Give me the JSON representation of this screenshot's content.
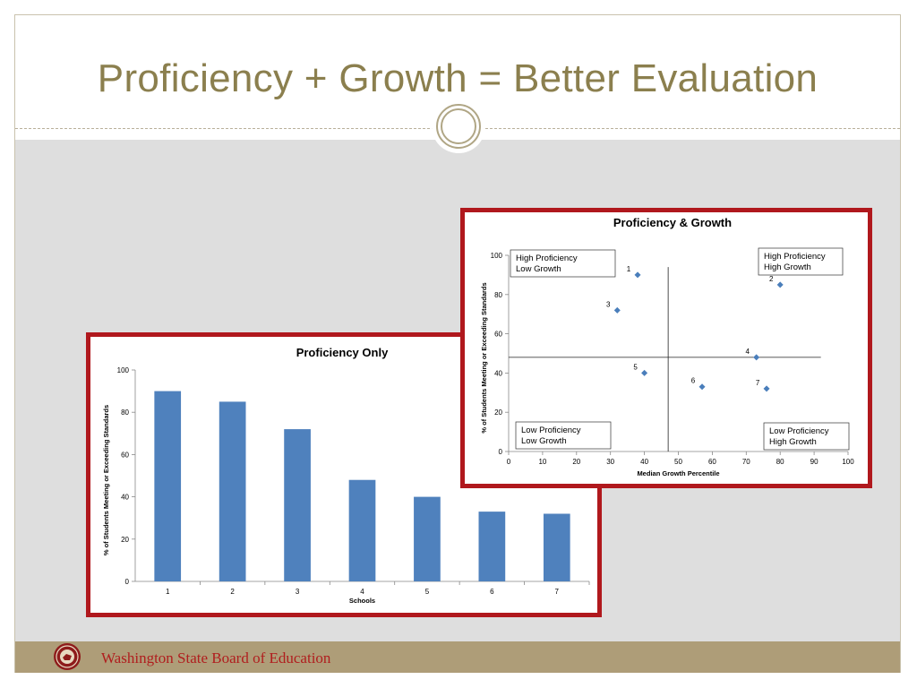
{
  "slide": {
    "title": "Proficiency + Growth = Better Evaluation",
    "footer": "Washington State Board of Education",
    "colors": {
      "title": "#8b7f4e",
      "chart_border": "#b0181d",
      "bar": "#4f81bd",
      "marker": "#4a7ebb",
      "footer_bg": "#ae9d78",
      "footer_text": "#b01e1e"
    }
  },
  "chart_data": [
    {
      "type": "scatter",
      "title": "Proficiency & Growth",
      "xlabel": "Median Growth Percentile",
      "ylabel": "% of Students Meeting or Exceeding Standards",
      "xlim": [
        0,
        100
      ],
      "ylim": [
        0,
        100
      ],
      "xticks": [
        0,
        10,
        20,
        30,
        40,
        50,
        60,
        70,
        80,
        90,
        100
      ],
      "yticks": [
        0,
        20,
        40,
        60,
        80,
        100
      ],
      "grid": false,
      "reference_lines": {
        "x": 47,
        "y": 48
      },
      "points": [
        {
          "label": "1",
          "x": 38,
          "y": 90
        },
        {
          "label": "2",
          "x": 80,
          "y": 85
        },
        {
          "label": "3",
          "x": 32,
          "y": 72
        },
        {
          "label": "4",
          "x": 73,
          "y": 48
        },
        {
          "label": "5",
          "x": 40,
          "y": 40
        },
        {
          "label": "6",
          "x": 57,
          "y": 33
        },
        {
          "label": "7",
          "x": 76,
          "y": 32
        }
      ],
      "quadrants": {
        "top_left": [
          "High Proficiency",
          "Low Growth"
        ],
        "top_right": [
          "High Proficiency",
          "High Growth"
        ],
        "bottom_left": [
          "Low Proficiency",
          "Low Growth"
        ],
        "bottom_right": [
          "Low Proficiency",
          "High Growth"
        ]
      }
    },
    {
      "type": "bar",
      "title": "Proficiency Only",
      "xlabel": "Schools",
      "ylabel": "% of Students Meeting or Exceeding Standards",
      "categories": [
        "1",
        "2",
        "3",
        "4",
        "5",
        "6",
        "7"
      ],
      "values": [
        90,
        85,
        72,
        48,
        40,
        33,
        32
      ],
      "ylim": [
        0,
        100
      ],
      "yticks": [
        0,
        20,
        40,
        60,
        80,
        100
      ],
      "grid": false
    }
  ]
}
